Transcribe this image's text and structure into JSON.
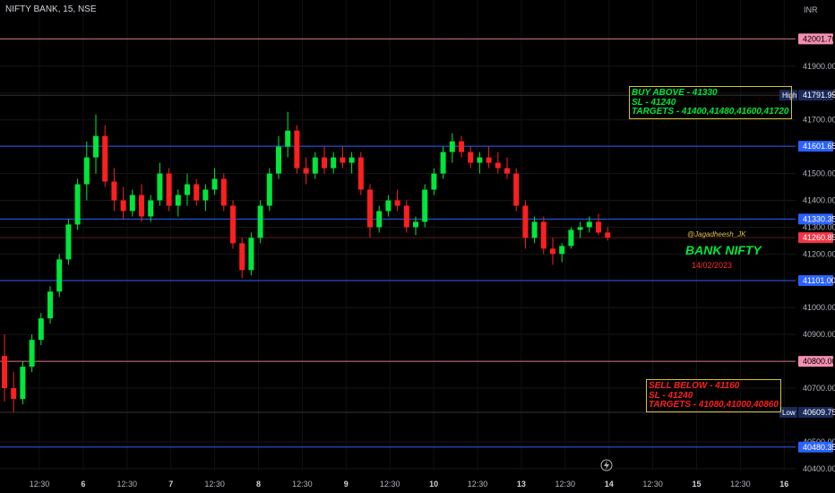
{
  "header": {
    "symbol": "NIFTY BANK, 15, NSE",
    "currency": "INR"
  },
  "price_axis": {
    "ticks": [
      "41900.00",
      "41800.00",
      "41700.00",
      "41500.00",
      "41400.00",
      "41300.00",
      "41200.00",
      "41000.00",
      "40900.00",
      "40700.00",
      "40500.00",
      "40400.00"
    ],
    "levels": [
      {
        "value": "42001.70",
        "bg": "#f48fb1",
        "fg": "#000000",
        "line": "#d47a8a"
      },
      {
        "value": "41791.95",
        "bg": "#1c2a5a",
        "fg": "#ffffff",
        "line": "#333333"
      },
      {
        "value": "41601.65",
        "bg": "#2962ff",
        "fg": "#ffffff",
        "line": "#2962ff"
      },
      {
        "value": "41330.35",
        "bg": "#2962ff",
        "fg": "#ffffff",
        "line": "#2962ff"
      },
      {
        "value": "41260.85",
        "bg": "#f23645",
        "fg": "#ffffff",
        "line": "#5a1a1a"
      },
      {
        "value": "41101.00",
        "bg": "#2962ff",
        "fg": "#ffffff",
        "line": "#2962ff"
      },
      {
        "value": "40800.00",
        "bg": "#f48fb1",
        "fg": "#000000",
        "line": "#d47a8a"
      },
      {
        "value": "40609.75",
        "bg": "#1c2a5a",
        "fg": "#ffffff",
        "line": "#333333"
      },
      {
        "value": "40480.35",
        "bg": "#2962ff",
        "fg": "#ffffff",
        "line": "#2962ff"
      }
    ],
    "high_label": "High",
    "low_label": "Low"
  },
  "time_axis": {
    "ticks": [
      "12:30",
      "6",
      "12:30",
      "7",
      "12:30",
      "8",
      "12:30",
      "9",
      "12:30",
      "10",
      "12:30",
      "13",
      "12:30",
      "14",
      "12:30",
      "15",
      "12:30",
      "16"
    ],
    "bold": [
      "6",
      "7",
      "8",
      "9",
      "10",
      "13",
      "14",
      "15",
      "16"
    ]
  },
  "annotations": {
    "buy": [
      "BUY ABOVE - 41330",
      "SL - 41240",
      "TARGETS - 41400,41480,41600,41720"
    ],
    "sell": [
      "SELL BELOW - 41160",
      "SL - 41240",
      "TARGETS - 41080,41000,40860"
    ],
    "author": "@Jagadheesh_JK",
    "title": "BANK NIFTY",
    "date": "14/02/2023"
  },
  "colors": {
    "up": "#00e63a",
    "down": "#ff1f1f",
    "background": "#000000"
  },
  "icons": [
    "lightning-icon"
  ],
  "chart_data": {
    "type": "candlestick",
    "ohlc": [
      [
        40820,
        40900,
        40650,
        40700
      ],
      [
        40700,
        40760,
        40610,
        40660
      ],
      [
        40660,
        40800,
        40640,
        40780
      ],
      [
        40780,
        40900,
        40760,
        40880
      ],
      [
        40880,
        40980,
        40860,
        40960
      ],
      [
        40960,
        41080,
        40940,
        41060
      ],
      [
        41060,
        41200,
        41040,
        41180
      ],
      [
        41180,
        41330,
        41160,
        41310
      ],
      [
        41310,
        41480,
        41290,
        41460
      ],
      [
        41460,
        41620,
        41400,
        41560
      ],
      [
        41560,
        41720,
        41500,
        41640
      ],
      [
        41640,
        41680,
        41450,
        41470
      ],
      [
        41470,
        41520,
        41360,
        41400
      ],
      [
        41400,
        41450,
        41330,
        41360
      ],
      [
        41360,
        41440,
        41340,
        41420
      ],
      [
        41420,
        41460,
        41320,
        41340
      ],
      [
        41340,
        41420,
        41320,
        41400
      ],
      [
        41400,
        41540,
        41380,
        41500
      ],
      [
        41500,
        41520,
        41360,
        41380
      ],
      [
        41380,
        41440,
        41340,
        41420
      ],
      [
        41420,
        41500,
        41380,
        41460
      ],
      [
        41460,
        41480,
        41380,
        41400
      ],
      [
        41400,
        41460,
        41360,
        41440
      ],
      [
        41440,
        41520,
        41420,
        41480
      ],
      [
        41480,
        41500,
        41360,
        41380
      ],
      [
        41380,
        41400,
        41220,
        41240
      ],
      [
        41240,
        41260,
        41110,
        41140
      ],
      [
        41140,
        41280,
        41120,
        41260
      ],
      [
        41260,
        41400,
        41240,
        41380
      ],
      [
        41380,
        41520,
        41360,
        41500
      ],
      [
        41500,
        41640,
        41480,
        41600
      ],
      [
        41600,
        41730,
        41560,
        41660
      ],
      [
        41660,
        41680,
        41500,
        41520
      ],
      [
        41520,
        41560,
        41460,
        41500
      ],
      [
        41500,
        41580,
        41480,
        41560
      ],
      [
        41560,
        41600,
        41500,
        41520
      ],
      [
        41520,
        41580,
        41500,
        41560
      ],
      [
        41560,
        41600,
        41520,
        41540
      ],
      [
        41540,
        41580,
        41500,
        41560
      ],
      [
        41560,
        41580,
        41420,
        41440
      ],
      [
        41440,
        41460,
        41260,
        41300
      ],
      [
        41300,
        41380,
        41280,
        41360
      ],
      [
        41360,
        41420,
        41340,
        41400
      ],
      [
        41400,
        41440,
        41360,
        41380
      ],
      [
        41380,
        41400,
        41280,
        41300
      ],
      [
        41300,
        41340,
        41270,
        41320
      ],
      [
        41320,
        41460,
        41300,
        41440
      ],
      [
        41440,
        41520,
        41420,
        41500
      ],
      [
        41500,
        41600,
        41480,
        41580
      ],
      [
        41580,
        41650,
        41540,
        41620
      ],
      [
        41620,
        41640,
        41560,
        41580
      ],
      [
        41580,
        41600,
        41520,
        41540
      ],
      [
        41540,
        41580,
        41500,
        41560
      ],
      [
        41560,
        41600,
        41520,
        41540
      ],
      [
        41540,
        41580,
        41500,
        41520
      ],
      [
        41520,
        41560,
        41480,
        41500
      ],
      [
        41500,
        41520,
        41360,
        41380
      ],
      [
        41380,
        41400,
        41220,
        41260
      ],
      [
        41260,
        41340,
        41240,
        41320
      ],
      [
        41320,
        41340,
        41200,
        41220
      ],
      [
        41220,
        41260,
        41160,
        41200
      ],
      [
        41200,
        41240,
        41170,
        41230
      ],
      [
        41230,
        41300,
        41220,
        41290
      ],
      [
        41290,
        41320,
        41260,
        41300
      ],
      [
        41300,
        41340,
        41280,
        41320
      ],
      [
        41320,
        41350,
        41270,
        41280
      ],
      [
        41280,
        41300,
        41250,
        41261
      ]
    ]
  }
}
